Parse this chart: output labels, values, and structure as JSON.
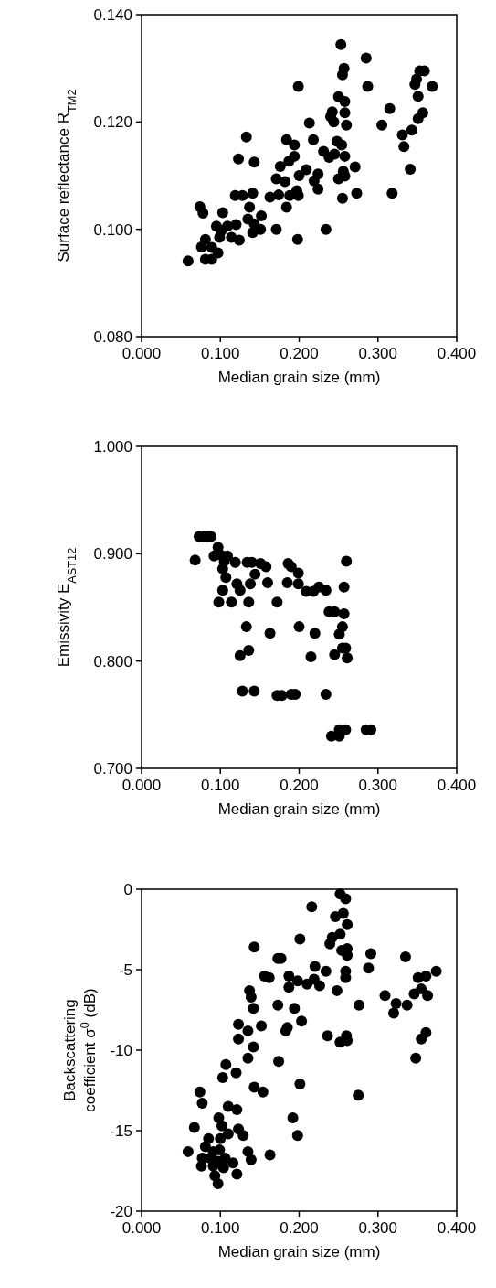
{
  "chart_data": [
    {
      "type": "scatter",
      "xlabel": "Median grain size (mm)",
      "ylabel": "Surface reflectance R$_{TM2}$",
      "marker": "circle",
      "grid": false,
      "xlim": [
        0,
        0.4
      ],
      "xticks": [
        {
          "value": 0,
          "label": "0.000"
        },
        {
          "value": 0.1,
          "label": "0.100"
        },
        {
          "value": 0.2,
          "label": "0.200"
        },
        {
          "value": 0.3,
          "label": "0.300"
        },
        {
          "value": 0.4,
          "label": "0.400"
        }
      ],
      "ylim": [
        0.08,
        0.14
      ],
      "yticks": [
        {
          "value": 0.08,
          "label": "0.080"
        },
        {
          "value": 0.1,
          "label": "0.100"
        },
        {
          "value": 0.12,
          "label": "0.120"
        },
        {
          "value": 0.14,
          "label": "0.140"
        }
      ],
      "series": [
        {
          "color": "#000000",
          "x": [
            0.253,
            0.285,
            0.257,
            0.255,
            0.199,
            0.287,
            0.353,
            0.359,
            0.347,
            0.349,
            0.369,
            0.351,
            0.25,
            0.258,
            0.315,
            0.242,
            0.24,
            0.258,
            0.244,
            0.213,
            0.26,
            0.305,
            0.357,
            0.351,
            0.343,
            0.331,
            0.333,
            0.341,
            0.318,
            0.133,
            0.184,
            0.194,
            0.218,
            0.248,
            0.254,
            0.231,
            0.238,
            0.245,
            0.258,
            0.123,
            0.143,
            0.194,
            0.187,
            0.176,
            0.271,
            0.209,
            0.2,
            0.224,
            0.219,
            0.224,
            0.256,
            0.258,
            0.25,
            0.171,
            0.182,
            0.273,
            0.255,
            0.119,
            0.128,
            0.141,
            0.163,
            0.174,
            0.188,
            0.197,
            0.199,
            0.184,
            0.074,
            0.078,
            0.103,
            0.137,
            0.152,
            0.135,
            0.143,
            0.12,
            0.171,
            0.234,
            0.151,
            0.141,
            0.095,
            0.101,
            0.109,
            0.099,
            0.114,
            0.124,
            0.198,
            0.081,
            0.076,
            0.089,
            0.097,
            0.081,
            0.089,
            0.059
          ],
          "values": [
            0.1344,
            0.1319,
            0.13,
            0.1288,
            0.1266,
            0.1266,
            0.1295,
            0.1295,
            0.127,
            0.128,
            0.1266,
            0.1248,
            0.1247,
            0.1238,
            0.1225,
            0.1219,
            0.121,
            0.1217,
            0.12,
            0.1198,
            0.1194,
            0.1194,
            0.1217,
            0.1206,
            0.1185,
            0.1176,
            0.1154,
            0.1112,
            0.1067,
            0.1172,
            0.1167,
            0.1157,
            0.1167,
            0.1164,
            0.1157,
            0.1145,
            0.1134,
            0.114,
            0.1136,
            0.1131,
            0.1125,
            0.1136,
            0.1127,
            0.1117,
            0.1116,
            0.1111,
            0.11,
            0.1103,
            0.109,
            0.1075,
            0.1108,
            0.1099,
            0.1094,
            0.1094,
            0.1089,
            0.1067,
            0.1058,
            0.1063,
            0.1063,
            0.1067,
            0.106,
            0.1064,
            0.1063,
            0.1072,
            0.1063,
            0.1041,
            0.1042,
            0.103,
            0.1031,
            0.1041,
            0.1025,
            0.1019,
            0.101,
            0.1009,
            0.1,
            0.1,
            0.1,
            0.0994,
            0.1006,
            0.0997,
            0.1006,
            0.0985,
            0.0985,
            0.098,
            0.0981,
            0.0981,
            0.0967,
            0.0966,
            0.0956,
            0.0944,
            0.0944,
            0.0941
          ]
        }
      ]
    },
    {
      "type": "scatter",
      "xlabel": "Median grain size (mm)",
      "ylabel": "Emissivity E$_{AST12}$",
      "marker": "circle",
      "grid": false,
      "xlim": [
        0,
        0.4
      ],
      "xticks": [
        {
          "value": 0,
          "label": "0.000"
        },
        {
          "value": 0.1,
          "label": "0.100"
        },
        {
          "value": 0.2,
          "label": "0.200"
        },
        {
          "value": 0.3,
          "label": "0.300"
        },
        {
          "value": 0.4,
          "label": "0.400"
        }
      ],
      "ylim": [
        0.7,
        1.0
      ],
      "yticks": [
        {
          "value": 0.7,
          "label": "0.700"
        },
        {
          "value": 0.8,
          "label": "0.800"
        },
        {
          "value": 0.9,
          "label": "0.900"
        },
        {
          "value": 1.0,
          "label": "1.000"
        }
      ],
      "series": [
        {
          "color": "#000000",
          "x": [
            0.073,
            0.079,
            0.084,
            0.088,
            0.068,
            0.097,
            0.092,
            0.1,
            0.109,
            0.105,
            0.119,
            0.103,
            0.107,
            0.134,
            0.14,
            0.151,
            0.158,
            0.144,
            0.138,
            0.121,
            0.125,
            0.16,
            0.186,
            0.19,
            0.199,
            0.185,
            0.199,
            0.209,
            0.218,
            0.225,
            0.234,
            0.26,
            0.257,
            0.103,
            0.098,
            0.114,
            0.136,
            0.172,
            0.238,
            0.245,
            0.257,
            0.255,
            0.251,
            0.133,
            0.163,
            0.2,
            0.22,
            0.125,
            0.136,
            0.215,
            0.245,
            0.255,
            0.261,
            0.259,
            0.128,
            0.143,
            0.172,
            0.178,
            0.19,
            0.195,
            0.234,
            0.241,
            0.251,
            0.251,
            0.259,
            0.285,
            0.291
          ],
          "values": [
            0.916,
            0.916,
            0.916,
            0.916,
            0.894,
            0.906,
            0.898,
            0.899,
            0.898,
            0.893,
            0.892,
            0.886,
            0.878,
            0.892,
            0.892,
            0.891,
            0.888,
            0.881,
            0.872,
            0.872,
            0.866,
            0.873,
            0.891,
            0.888,
            0.882,
            0.873,
            0.872,
            0.865,
            0.865,
            0.869,
            0.866,
            0.893,
            0.869,
            0.866,
            0.855,
            0.855,
            0.855,
            0.855,
            0.846,
            0.846,
            0.844,
            0.832,
            0.825,
            0.832,
            0.826,
            0.832,
            0.826,
            0.805,
            0.81,
            0.804,
            0.806,
            0.812,
            0.803,
            0.812,
            0.772,
            0.772,
            0.768,
            0.768,
            0.769,
            0.769,
            0.769,
            0.73,
            0.73,
            0.736,
            0.736,
            0.736,
            0.736
          ]
        }
      ]
    },
    {
      "type": "scatter",
      "xlabel": "Median grain size (mm)",
      "ylabel": "Backscattering coefficient σ$^{0}$ (dB)",
      "marker": "circle",
      "grid": false,
      "xlim": [
        0,
        0.4
      ],
      "xticks": [
        {
          "value": 0,
          "label": "0.000"
        },
        {
          "value": 0.1,
          "label": "0.100"
        },
        {
          "value": 0.2,
          "label": "0.200"
        },
        {
          "value": 0.3,
          "label": "0.300"
        },
        {
          "value": 0.4,
          "label": "0.400"
        }
      ],
      "ylim": [
        -20,
        0
      ],
      "yticks": [
        -20,
        -15,
        -10,
        -5,
        0
      ],
      "series": [
        {
          "color": "#000000",
          "x": [
            0.252,
            0.259,
            0.216,
            0.246,
            0.256,
            0.261,
            0.201,
            0.242,
            0.252,
            0.239,
            0.143,
            0.254,
            0.261,
            0.261,
            0.291,
            0.288,
            0.335,
            0.173,
            0.177,
            0.22,
            0.234,
            0.259,
            0.259,
            0.374,
            0.156,
            0.162,
            0.187,
            0.187,
            0.198,
            0.21,
            0.219,
            0.226,
            0.248,
            0.351,
            0.361,
            0.355,
            0.363,
            0.346,
            0.309,
            0.323,
            0.32,
            0.337,
            0.137,
            0.139,
            0.142,
            0.173,
            0.194,
            0.203,
            0.276,
            0.123,
            0.135,
            0.123,
            0.152,
            0.142,
            0.135,
            0.185,
            0.183,
            0.236,
            0.252,
            0.26,
            0.261,
            0.361,
            0.355,
            0.348,
            0.174,
            0.107,
            0.12,
            0.103,
            0.143,
            0.154,
            0.201,
            0.275,
            0.074,
            0.077,
            0.11,
            0.121,
            0.192,
            0.198,
            0.067,
            0.059,
            0.085,
            0.081,
            0.091,
            0.099,
            0.077,
            0.087,
            0.097,
            0.106,
            0.116,
            0.076,
            0.091,
            0.104,
            0.093,
            0.097,
            0.1,
            0.11,
            0.123,
            0.129,
            0.098,
            0.102,
            0.135,
            0.139,
            0.121,
            0.163
          ],
          "values": [
            -0.3,
            -0.6,
            -1.1,
            -1.7,
            -1.5,
            -2.2,
            -3.1,
            -3.0,
            -2.8,
            -3.4,
            -3.6,
            -3.8,
            -3.7,
            -4.1,
            -4.0,
            -4.9,
            -4.2,
            -4.3,
            -4.3,
            -4.8,
            -5.1,
            -5.1,
            -5.5,
            -5.1,
            -5.4,
            -5.5,
            -5.4,
            -6.1,
            -5.7,
            -5.9,
            -5.6,
            -6.0,
            -6.3,
            -5.5,
            -5.4,
            -6.2,
            -6.6,
            -6.5,
            -6.6,
            -7.1,
            -7.7,
            -7.2,
            -6.3,
            -6.7,
            -7.4,
            -7.2,
            -7.4,
            -8.2,
            -7.2,
            -8.4,
            -8.8,
            -9.3,
            -8.5,
            -9.8,
            -10.5,
            -8.6,
            -8.8,
            -9.1,
            -9.5,
            -9.1,
            -9.4,
            -8.9,
            -9.3,
            -10.5,
            -10.7,
            -10.9,
            -11.4,
            -11.7,
            -12.3,
            -12.6,
            -12.1,
            -12.8,
            -12.6,
            -13.3,
            -13.5,
            -13.7,
            -14.2,
            -15.3,
            -14.8,
            -16.3,
            -15.5,
            -16.0,
            -16.3,
            -16.2,
            -16.7,
            -16.7,
            -16.9,
            -16.7,
            -17.0,
            -17.2,
            -17.2,
            -17.3,
            -17.8,
            -18.3,
            -15.5,
            -15.2,
            -14.9,
            -15.3,
            -14.2,
            -14.7,
            -16.3,
            -16.8,
            -17.7,
            -16.5
          ]
        }
      ]
    }
  ]
}
